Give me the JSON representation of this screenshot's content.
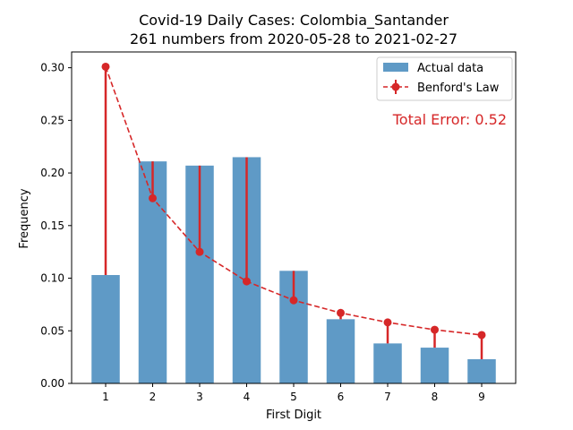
{
  "chart_data": {
    "type": "bar",
    "title": "Covid-19 Daily Cases: Colombia_Santander",
    "subtitle": "261 numbers from 2020-05-28 to 2021-02-27",
    "xlabel": "First Digit",
    "ylabel": "Frequency",
    "categories": [
      "1",
      "2",
      "3",
      "4",
      "5",
      "6",
      "7",
      "8",
      "9"
    ],
    "ylim": [
      0,
      0.315
    ],
    "yticks": [
      "0.00",
      "0.05",
      "0.10",
      "0.15",
      "0.20",
      "0.25",
      "0.30"
    ],
    "series": [
      {
        "name": "Actual data",
        "kind": "bar",
        "color": "#5f9ac6",
        "values": [
          0.103,
          0.211,
          0.207,
          0.215,
          0.107,
          0.061,
          0.038,
          0.034,
          0.023
        ]
      },
      {
        "name": "Benford's Law",
        "kind": "line-errorbar",
        "color": "#d62728",
        "values": [
          0.301,
          0.176,
          0.125,
          0.097,
          0.079,
          0.067,
          0.058,
          0.051,
          0.046
        ]
      }
    ],
    "annotation": "Total Error: 0.52",
    "annotation_color": "#d62728",
    "legend_position": "top-right",
    "grid": false
  }
}
